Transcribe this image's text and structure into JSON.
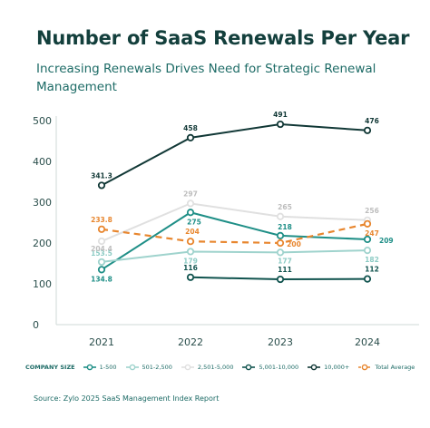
{
  "title": "Number of SaaS Renewals Per Year",
  "subtitle": "Increasing Renewals Drives Need for Strategic Renewal Management",
  "legend_title": "COMPANY SIZE",
  "source": "Source: Zylo 2025 SaaS Management Index Report",
  "chart_data": {
    "type": "line",
    "x": [
      "2021",
      "2022",
      "2023",
      "2024"
    ],
    "ylim": [
      0,
      500
    ],
    "yticks": [
      "0",
      "100",
      "200",
      "300",
      "400",
      "500"
    ],
    "grid": false,
    "legend_position": "bottom",
    "series": [
      {
        "name": "1-500",
        "color": "#1f8f87",
        "dashed": false,
        "values": [
          134.8,
          275,
          218,
          209
        ],
        "labels": [
          "134.8",
          "275",
          "218",
          "209"
        ]
      },
      {
        "name": "501-2,500",
        "color": "#9fd3cd",
        "dashed": false,
        "values": [
          153.5,
          179,
          177,
          182
        ],
        "labels": [
          "153.5",
          "179",
          "177",
          "182"
        ]
      },
      {
        "name": "2,501-5,000",
        "color": "#e0e0e0",
        "dashed": false,
        "values": [
          204.4,
          297,
          265,
          256
        ],
        "labels": [
          "204.4",
          "297",
          "265",
          "256"
        ]
      },
      {
        "name": "5,001-10,000",
        "color": "#10534e",
        "dashed": false,
        "values": [
          null,
          116,
          111,
          112
        ],
        "labels": [
          "",
          "116",
          "111",
          "112"
        ]
      },
      {
        "name": "10,000+",
        "color": "#113836",
        "dashed": false,
        "values": [
          341.3,
          458,
          491,
          476
        ],
        "labels": [
          "341.3",
          "458",
          "491",
          "476"
        ]
      },
      {
        "name": "Total Average",
        "color": "#e8862e",
        "dashed": true,
        "values": [
          233.8,
          204,
          200,
          247
        ],
        "labels": [
          "233.8",
          "204",
          "200",
          "247"
        ]
      }
    ]
  }
}
